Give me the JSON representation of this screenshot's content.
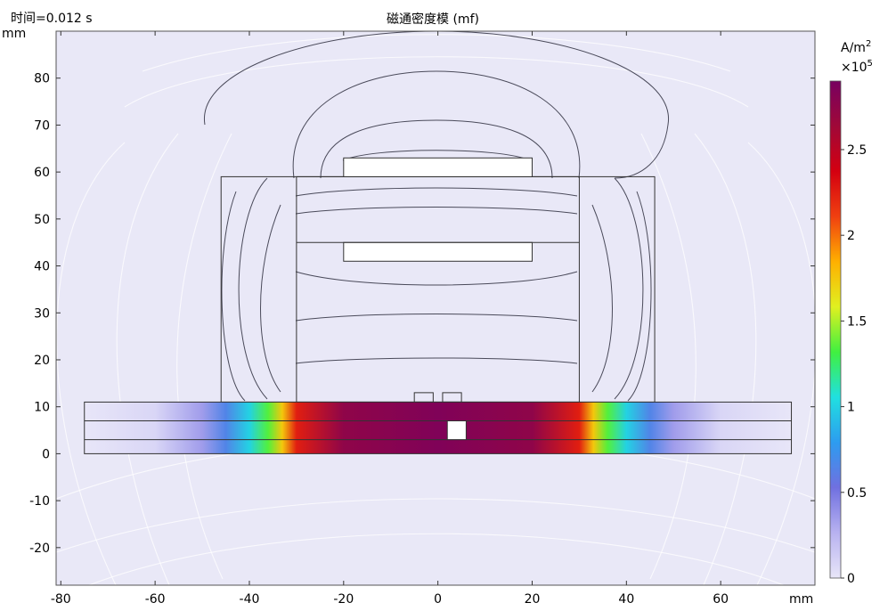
{
  "chart_data": {
    "type": "heatmap",
    "title": "磁通密度模 (mf)",
    "time_label": "时间=0.012 s",
    "x_unit": "mm",
    "y_unit": "mm",
    "xlim": [
      -81,
      80
    ],
    "ylim": [
      -28,
      90
    ],
    "x_ticks": [
      -80,
      -60,
      -40,
      -20,
      0,
      20,
      40,
      60
    ],
    "y_ticks": [
      -20,
      -10,
      0,
      10,
      20,
      30,
      40,
      50,
      60,
      70,
      80
    ],
    "colorbar": {
      "unit": "A/m",
      "unit_exp": "2",
      "multiplier_base": "×10",
      "multiplier_exp": "5",
      "min": 0,
      "max": 2.9,
      "ticks": [
        {
          "value": 0,
          "label": "0"
        },
        {
          "value": 0.5,
          "label": "0.5"
        },
        {
          "value": 1,
          "label": "1"
        },
        {
          "value": 1.5,
          "label": "1.5"
        },
        {
          "value": 2,
          "label": "2"
        },
        {
          "value": 2.5,
          "label": "2.5"
        }
      ],
      "colormap": [
        "#e8e6f8",
        "#b8b2f0",
        "#7070e0",
        "#2d9cf0",
        "#20e0e0",
        "#40f040",
        "#e0f020",
        "#ffb000",
        "#f04010",
        "#d40010",
        "#a00838",
        "#780060"
      ]
    },
    "plate_profile": {
      "x": [
        -75,
        -60,
        -50,
        -45,
        -40,
        -36,
        -33,
        -30,
        -20,
        0,
        20,
        30,
        33,
        36,
        40,
        45,
        50,
        60,
        75
      ],
      "value": [
        0.0,
        0.08,
        0.35,
        0.65,
        1.0,
        1.35,
        1.75,
        2.25,
        2.75,
        2.85,
        2.75,
        2.25,
        1.75,
        1.35,
        1.0,
        0.65,
        0.35,
        0.08,
        0.0
      ]
    },
    "geometry": {
      "base_plate": {
        "x": [
          -75,
          75
        ],
        "y": [
          0,
          11
        ],
        "layers_y": [
          3,
          7
        ]
      },
      "slot": {
        "x": [
          2,
          6
        ],
        "y": [
          3,
          7
        ]
      },
      "outer_box": {
        "x": [
          -46,
          46
        ],
        "y": [
          11,
          59
        ]
      },
      "inner_box": {
        "x": [
          -30,
          30
        ],
        "y": [
          11,
          59
        ]
      },
      "upper_plate": {
        "x": [
          -20,
          20
        ],
        "y": [
          59,
          63
        ]
      },
      "lower_plate": {
        "x": [
          -20,
          20
        ],
        "y": [
          41,
          45
        ]
      },
      "bumps": [
        {
          "x": [
            -5,
            -1
          ],
          "y": [
            11,
            13
          ]
        },
        {
          "x": [
            1,
            5
          ],
          "y": [
            11,
            13
          ]
        }
      ]
    }
  }
}
